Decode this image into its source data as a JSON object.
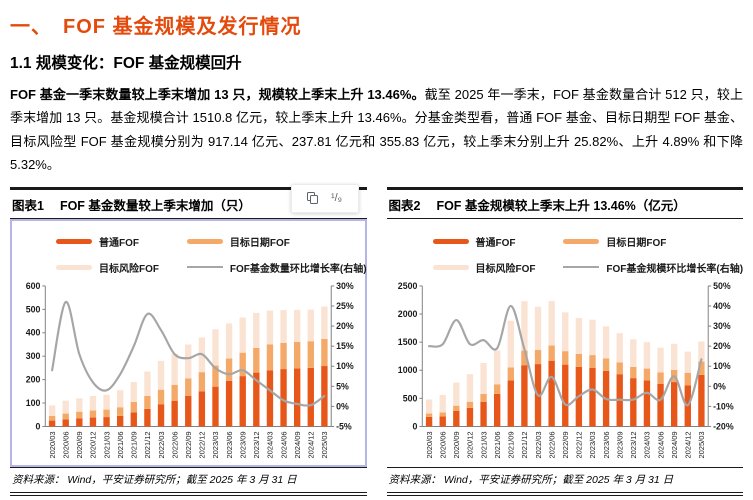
{
  "page": {
    "section_title": "一、　FOF 基金规模及发行情况",
    "subsection_title": "1.1 规模变化：FOF 基金规模回升",
    "paragraph_bold": "FOF 基金一季末数量较上季末增加 13 只，规模较上季末上升 13.46%。",
    "paragraph_rest": "截至 2025 年一季末，FOF 基金数量合计 512 只，较上季末增加 13 只。基金规模合计 1510.8 亿元，较上季末上升 13.46%。分基金类型看，普通 FOF 基金、目标日期型 FOF 基金、目标风险型 FOF 基金规模分别为 917.14 亿元、237.81 亿元和 355.83 亿元，较上季末分别上升 25.82%、上升 4.89% 和下降 5.32%。"
  },
  "toolbar": {
    "icons": [
      "copy-icon",
      "fraction-icon"
    ],
    "fraction_label": "¹/₉"
  },
  "colors": {
    "title_orange": "#e34a0b",
    "bar_primary": "#e8571a",
    "bar_secondary": "#f5a968",
    "bar_tertiary": "#fbe3d3",
    "line": "#a6a6a6",
    "selection_border": "#b5b5e8"
  },
  "chart_data": [
    {
      "type": "bar",
      "subtype": "stacked-bars-with-line",
      "label": "图表1",
      "title": "FOF 基金数量较上季末增加（只）",
      "source": "资料来源：  Wind，平安证券研究所；截至 2025 年 3 月 31 日",
      "grid": false,
      "legend_position": "top",
      "categories": [
        "2020/03",
        "2020/06",
        "2020/09",
        "2020/12",
        "2021/03",
        "2021/06",
        "2021/09",
        "2021/12",
        "2022/03",
        "2022/06",
        "2022/09",
        "2022/12",
        "2023/03",
        "2023/06",
        "2023/09",
        "2023/12",
        "2024/03",
        "2024/06",
        "2024/09",
        "2024/12",
        "2025/03"
      ],
      "series": [
        {
          "name": "普通FOF",
          "type": "bar",
          "color": "bar_primary",
          "values": [
            25,
            30,
            35,
            38,
            40,
            45,
            60,
            75,
            95,
            110,
            130,
            150,
            170,
            195,
            215,
            230,
            240,
            245,
            248,
            250,
            258
          ]
        },
        {
          "name": "目标日期FOF",
          "type": "bar",
          "color": "bar_secondary",
          "values": [
            20,
            25,
            28,
            30,
            32,
            37,
            45,
            55,
            62,
            68,
            75,
            82,
            90,
            95,
            100,
            105,
            110,
            112,
            113,
            114,
            116
          ]
        },
        {
          "name": "目标风险FOF",
          "type": "bar",
          "color": "bar_tertiary",
          "values": [
            45,
            55,
            57,
            62,
            63,
            73,
            85,
            105,
            123,
            132,
            145,
            148,
            155,
            150,
            150,
            150,
            145,
            140,
            137,
            135,
            138
          ]
        },
        {
          "name": "FOF基金数量环比增长率(右轴)",
          "type": "line",
          "axis": "right",
          "color": "line",
          "values": [
            9,
            26,
            13,
            6,
            4,
            8,
            15,
            23,
            19,
            13,
            12,
            13,
            9.5,
            8,
            9,
            6.5,
            4,
            1.5,
            0.6,
            0.3,
            2.6
          ]
        }
      ],
      "left_axis": {
        "min": 0,
        "max": 600,
        "step": 100
      },
      "right_axis": {
        "min": -5,
        "max": 30,
        "step": 5,
        "suffix": "%"
      }
    },
    {
      "type": "bar",
      "subtype": "stacked-bars-with-line",
      "label": "图表2",
      "title": "FOF 基金规模较上季末上升 13.46%（亿元）",
      "source": "资料来源：  Wind，平安证券研究所；截至 2025 年 3 月 31 日",
      "grid": false,
      "legend_position": "top",
      "categories": [
        "2020/03",
        "2020/06",
        "2020/09",
        "2020/12",
        "2021/03",
        "2021/06",
        "2021/09",
        "2021/12",
        "2022/03",
        "2022/06",
        "2022/09",
        "2022/12",
        "2023/03",
        "2023/06",
        "2023/09",
        "2023/12",
        "2024/03",
        "2024/06",
        "2024/09",
        "2024/12",
        "2025/03"
      ],
      "series": [
        {
          "name": "普通FOF",
          "type": "bar",
          "color": "bar_primary",
          "values": [
            170,
            180,
            280,
            330,
            440,
            580,
            820,
            1090,
            1110,
            1170,
            1100,
            1060,
            1040,
            990,
            930,
            860,
            820,
            760,
            790,
            729,
            917.14
          ]
        },
        {
          "name": "目标日期FOF",
          "type": "bar",
          "color": "bar_secondary",
          "values": [
            60,
            70,
            90,
            110,
            140,
            170,
            230,
            260,
            250,
            270,
            240,
            230,
            230,
            220,
            210,
            200,
            210,
            200,
            215,
            227,
            237.81
          ]
        },
        {
          "name": "目标风险FOF",
          "type": "bar",
          "color": "bar_tertiary",
          "values": [
            250,
            310,
            410,
            490,
            550,
            600,
            830,
            880,
            770,
            790,
            690,
            640,
            630,
            570,
            520,
            490,
            470,
            440,
            465,
            376,
            355.83
          ]
        },
        {
          "name": "FOF基金规模环比增长率(右轴)",
          "type": "line",
          "axis": "right",
          "color": "line",
          "values": [
            20,
            21,
            33,
            21,
            23,
            19,
            40,
            18.5,
            -4.5,
            4.7,
            -9,
            -4.9,
            -1.6,
            -6.3,
            -6.7,
            -6.6,
            -3.2,
            -6.7,
            5,
            -9.4,
            13.46
          ]
        }
      ],
      "left_axis": {
        "min": 0,
        "max": 2500,
        "step": 500
      },
      "right_axis": {
        "min": -20,
        "max": 50,
        "step": 10,
        "suffix": "%"
      }
    }
  ]
}
